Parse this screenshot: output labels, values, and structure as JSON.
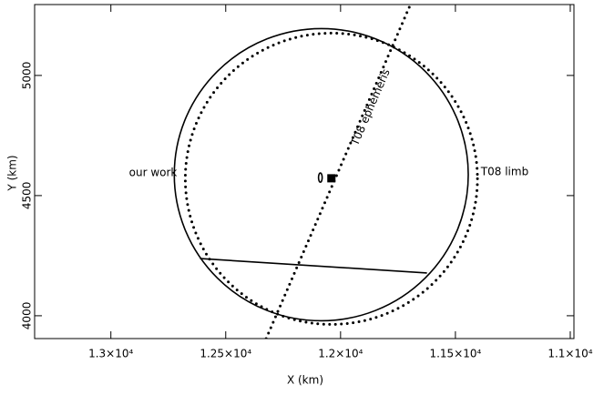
{
  "chart_data": {
    "type": "geometry",
    "x_label": "X (km)",
    "y_label": "Y (km)",
    "xlim": [
      13332,
      10984
    ],
    "ylim": [
      3905,
      5295
    ],
    "xticks": [
      {
        "value": 13000,
        "label": "1.3×10⁴"
      },
      {
        "value": 12500,
        "label": "1.25×10⁴"
      },
      {
        "value": 12000,
        "label": "1.2×10⁴"
      },
      {
        "value": 11500,
        "label": "1.15×10⁴"
      },
      {
        "value": 11000,
        "label": "1.1×10⁴"
      }
    ],
    "yticks": [
      4000,
      4500,
      5000
    ],
    "series": [
      {
        "name": "our work",
        "kind": "ellipse",
        "color": "#000000",
        "dashed": false,
        "cx": 12084,
        "cy": 4587,
        "rx": 640,
        "ry": 608
      },
      {
        "name": "T08 limb",
        "kind": "ellipse",
        "color": "#000000",
        "dashed": true,
        "cx": 12040,
        "cy": 4570,
        "rx": 636,
        "ry": 606
      },
      {
        "name": "T08 ephemeris",
        "kind": "line",
        "color": "#000000",
        "dashed": true,
        "x": [
          12324,
          11696
        ],
        "y": [
          3905,
          5295
        ]
      },
      {
        "kind": "line",
        "color": "#000000",
        "dashed": false,
        "x": [
          12612,
          11624
        ],
        "y": [
          4238,
          4178
        ]
      },
      {
        "kind": "square",
        "color": "#000000",
        "x": 12040,
        "y": 4572
      },
      {
        "kind": "ellipse",
        "color": "#000000",
        "dashed": false,
        "cx": 12088,
        "cy": 4575,
        "rx": 8,
        "ry": 19
      }
    ]
  }
}
